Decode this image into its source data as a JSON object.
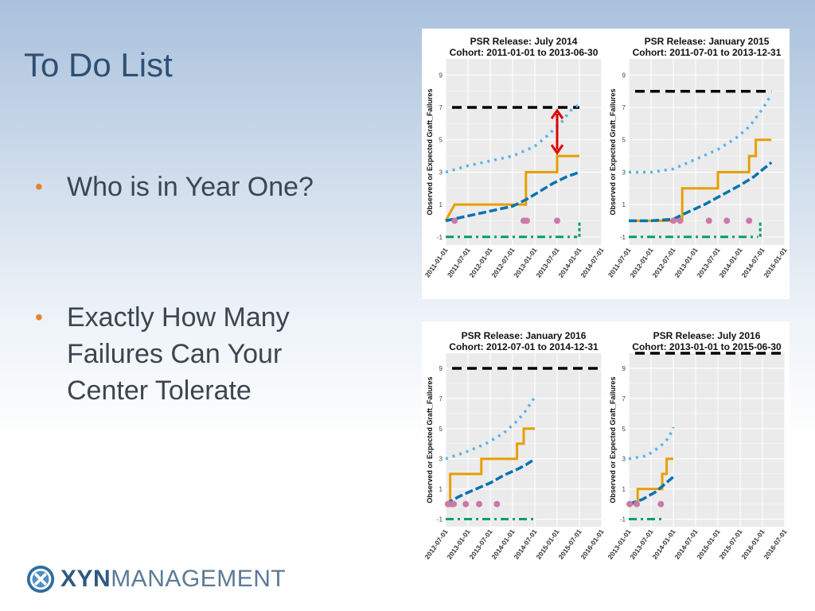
{
  "slide": {
    "title": "To Do List",
    "bullets": [
      {
        "text": "Who is in Year One?"
      },
      {
        "text": "Exactly How Many Failures Can Your Center  Tolerate"
      }
    ],
    "bullet_symbol": "•"
  },
  "logo": {
    "bold": "XYN",
    "light": "MANAGEMENT",
    "icon": "x-circle-icon"
  },
  "colors": {
    "title": "#2f4f74",
    "bullet": "#e8832a",
    "body_text": "#3c4650",
    "panel_bg": "#ebebeb",
    "grid": "#ffffff",
    "threshold": "#000000",
    "upper": "#56b4e9",
    "observed": "#e69f00",
    "expected": "#0072b2",
    "events": "#cc79a7",
    "bottom": "#009e73",
    "arrow": "#e00000"
  },
  "chart_data": [
    {
      "type": "line",
      "title": "PSR Release:  July 2014",
      "subtitle": "Cohort:  2011-01-01  to  2013-06-30",
      "ylabel": "Observed or Expected Graft_Failures",
      "ylim": [
        -1.5,
        10
      ],
      "yticks": [
        -1,
        1,
        3,
        5,
        7,
        9
      ],
      "xlim": [
        2011.0,
        2014.5
      ],
      "xticks": [
        2011.0,
        2011.5,
        2012.0,
        2012.5,
        2013.0,
        2013.5,
        2014.0,
        2014.5
      ],
      "xtick_labels": [
        "2011-01-01",
        "2011-07-01",
        "2012-01-01",
        "2012-07-01",
        "2013-01-01",
        "2013-07-01",
        "2014-01-01",
        "2014-07-01"
      ],
      "threshold": 7,
      "threshold_end": 2014.0,
      "upper": {
        "x": [
          2011.0,
          2011.5,
          2012.0,
          2012.5,
          2013.0,
          2013.3,
          2013.6,
          2013.8,
          2014.0
        ],
        "y": [
          3.0,
          3.4,
          3.7,
          4.0,
          4.6,
          5.3,
          6.1,
          6.8,
          7.2
        ]
      },
      "expected": {
        "x": [
          2011.0,
          2011.5,
          2012.0,
          2012.5,
          2012.8,
          2013.1,
          2013.4,
          2013.7,
          2014.0
        ],
        "y": [
          0.0,
          0.3,
          0.6,
          0.9,
          1.3,
          1.8,
          2.3,
          2.7,
          3.0
        ]
      },
      "observed": {
        "x": [
          2011.0,
          2011.2,
          2012.8,
          2012.8,
          2013.5,
          2013.5,
          2014.0
        ],
        "y": [
          0,
          1,
          1,
          3,
          3,
          4,
          4
        ]
      },
      "events": [
        2011.2,
        2012.75,
        2012.82,
        2013.5
      ],
      "bottom": {
        "x_end": 2013.95,
        "y": -1,
        "rise_x": 2014.0,
        "rise_y": 0
      },
      "arrow": {
        "x": 2013.5,
        "y_top": 7,
        "y_bottom": 4
      }
    },
    {
      "type": "line",
      "title": "PSR Release:  January 2015",
      "subtitle": "Cohort:  2011-07-01  to  2013-12-31",
      "ylabel": "Observed or Expected Graft_Failures",
      "ylim": [
        -1.5,
        10
      ],
      "yticks": [
        -1,
        1,
        3,
        5,
        7,
        9
      ],
      "xlim": [
        2011.5,
        2015.0
      ],
      "xticks": [
        2011.5,
        2012.0,
        2012.5,
        2013.0,
        2013.5,
        2014.0,
        2014.5,
        2015.0
      ],
      "xtick_labels": [
        "2011-07-01",
        "2012-01-01",
        "2012-07-01",
        "2013-01-01",
        "2013-07-01",
        "2014-01-01",
        "2014-07-01",
        "2015-01-01"
      ],
      "threshold": 8,
      "threshold_end": 2014.7,
      "upper": {
        "x": [
          2011.5,
          2012.0,
          2012.5,
          2013.0,
          2013.5,
          2013.9,
          2014.2,
          2014.5,
          2014.7
        ],
        "y": [
          3.0,
          3.0,
          3.2,
          3.8,
          4.4,
          5.1,
          5.8,
          6.9,
          7.8
        ]
      },
      "expected": {
        "x": [
          2011.5,
          2012.0,
          2012.5,
          2012.8,
          2013.2,
          2013.6,
          2014.0,
          2014.3,
          2014.7
        ],
        "y": [
          0.0,
          0.0,
          0.1,
          0.5,
          1.0,
          1.6,
          2.2,
          2.7,
          3.6
        ]
      },
      "observed": {
        "x": [
          2011.5,
          2012.2,
          2012.7,
          2012.7,
          2013.5,
          2013.5,
          2014.2,
          2014.2,
          2014.35,
          2014.35,
          2014.5,
          2014.5,
          2014.7
        ],
        "y": [
          0,
          0,
          0,
          2,
          2,
          3,
          3,
          4,
          4,
          5,
          5,
          5,
          5
        ]
      },
      "events": [
        2012.5,
        2012.65,
        2013.3,
        2013.7,
        2014.2
      ],
      "bottom": {
        "x_end": 2014.4,
        "y": -1,
        "rise_x": 2014.45,
        "rise_y": 0
      },
      "arrow": null
    },
    {
      "type": "line",
      "title": "PSR Release:  January 2016",
      "subtitle": "Cohort:  2012-07-01  to  2014-12-31",
      "ylabel": "Observed or Expected Graft_Failures",
      "ylim": [
        -1.5,
        10
      ],
      "yticks": [
        -1,
        1,
        3,
        5,
        7,
        9
      ],
      "xlim": [
        2012.5,
        2016.0
      ],
      "xticks": [
        2012.5,
        2013.0,
        2013.5,
        2014.0,
        2014.5,
        2015.0,
        2015.5,
        2016.0
      ],
      "xtick_labels": [
        "2012-07-01",
        "2013-01-01",
        "2013-07-01",
        "2014-01-01",
        "2014-07-01",
        "2015-01-01",
        "2015-07-01",
        "2016-01-01"
      ],
      "threshold": 9,
      "threshold_end": 2016.0,
      "upper": {
        "x": [
          2012.5,
          2013.0,
          2013.4,
          2013.8,
          2014.1,
          2014.3,
          2014.5
        ],
        "y": [
          3.0,
          3.5,
          4.0,
          4.7,
          5.5,
          6.2,
          7.1
        ]
      },
      "expected": {
        "x": [
          2012.5,
          2012.8,
          2013.1,
          2013.5,
          2013.8,
          2014.1,
          2014.3,
          2014.5
        ],
        "y": [
          0.0,
          0.5,
          0.9,
          1.4,
          1.9,
          2.3,
          2.6,
          3.0
        ]
      },
      "observed": {
        "x": [
          2012.5,
          2012.6,
          2012.6,
          2013.3,
          2013.3,
          2014.1,
          2014.1,
          2014.25,
          2014.25,
          2014.5
        ],
        "y": [
          0,
          0,
          2,
          2,
          3,
          3,
          4,
          4,
          5,
          5
        ]
      },
      "events": [
        2012.55,
        2012.62,
        2012.68,
        2012.95,
        2013.25,
        2013.65
      ],
      "bottom": {
        "x_end": 2014.5,
        "y": -1,
        "rise_x": null,
        "rise_y": null
      },
      "arrow": null
    },
    {
      "type": "line",
      "title": "PSR Release:  July 2016",
      "subtitle": "Cohort:  2013-01-01  to  2015-06-30",
      "ylabel": "Observed or Expected Graft_Failures",
      "ylim": [
        -1.5,
        10
      ],
      "yticks": [
        -1,
        1,
        3,
        5,
        7,
        9
      ],
      "xlim": [
        2013.0,
        2016.5
      ],
      "xticks": [
        2013.0,
        2013.5,
        2014.0,
        2014.5,
        2015.0,
        2015.5,
        2016.0,
        2016.5
      ],
      "xtick_labels": [
        "2013-01-01",
        "2013-07-01",
        "2014-01-01",
        "2014-07-01",
        "2015-01-01",
        "2015-07-01",
        "2016-01-01",
        "2016-07-01"
      ],
      "threshold": 10,
      "threshold_end": 2016.5,
      "upper": {
        "x": [
          2013.0,
          2013.4,
          2013.7,
          2013.9,
          2014.0
        ],
        "y": [
          3.0,
          3.2,
          3.8,
          4.4,
          5.1
        ]
      },
      "expected": {
        "x": [
          2013.0,
          2013.3,
          2013.6,
          2013.8,
          2014.0
        ],
        "y": [
          0.0,
          0.3,
          0.8,
          1.3,
          1.8
        ]
      },
      "observed": {
        "x": [
          2013.0,
          2013.2,
          2013.2,
          2013.5,
          2013.5,
          2013.75,
          2013.75,
          2013.85,
          2013.85,
          2014.0
        ],
        "y": [
          0,
          0,
          1,
          1,
          1,
          1,
          2,
          2,
          3,
          3
        ]
      },
      "events": [
        2013.02,
        2013.18,
        2013.72
      ],
      "bottom": {
        "x_end": 2013.8,
        "y": -1,
        "rise_x": null,
        "rise_y": null
      },
      "arrow": null
    }
  ]
}
